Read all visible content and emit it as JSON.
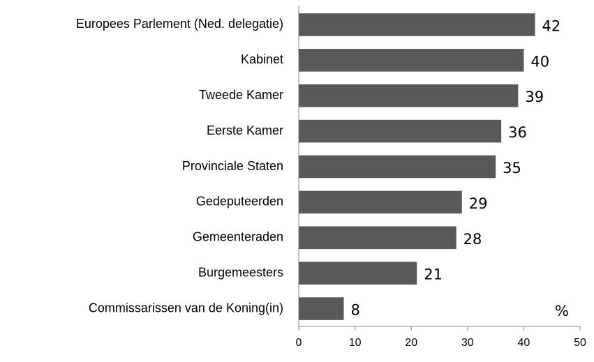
{
  "chart_data": {
    "type": "bar",
    "orientation": "horizontal",
    "categories": [
      "Europees Parlement (Ned. delegatie)",
      "Kabinet",
      "Tweede Kamer",
      "Eerste Kamer",
      "Provinciale Staten",
      "Gedeputeerden",
      "Gemeenteraden",
      "Burgemeesters",
      "Commissarissen van de Koning(in)"
    ],
    "values": [
      42,
      40,
      39,
      36,
      35,
      29,
      28,
      21,
      8
    ],
    "color": "#595959",
    "xlim": [
      0,
      50
    ],
    "xticks": [
      0,
      10,
      20,
      30,
      40,
      50
    ],
    "annotation": "%",
    "grid": false
  }
}
